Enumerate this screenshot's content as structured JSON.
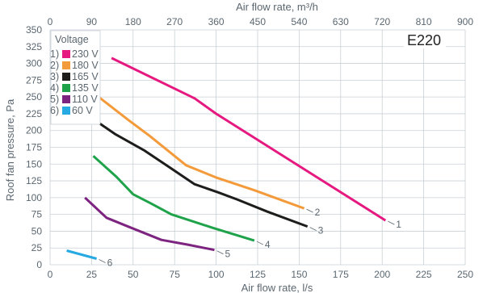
{
  "chart_data": {
    "type": "line",
    "model_label": "E220",
    "xlabel": "Air flow rate, l/s",
    "x2label": "Air flow rate, m³/h",
    "ylabel": "Roof fan pressure, Pa",
    "xlim": [
      0,
      250
    ],
    "x2lim": [
      0,
      900
    ],
    "ylim": [
      0,
      350
    ],
    "x_ticks": [
      "0",
      "25",
      "50",
      "75",
      "100",
      "125",
      "150",
      "175",
      "200",
      "225",
      "250"
    ],
    "x2_ticks": [
      "0",
      "90",
      "180",
      "270",
      "360",
      "450",
      "540",
      "630",
      "720",
      "810",
      "900"
    ],
    "y_ticks": [
      "0",
      "25",
      "50",
      "75",
      "100",
      "125",
      "150",
      "175",
      "200",
      "225",
      "250",
      "275",
      "300",
      "325",
      "350"
    ],
    "grid": true,
    "legend": {
      "title": "Voltage",
      "position": "top-left",
      "entries": [
        {
          "prefix": "1)",
          "label": "230 V"
        },
        {
          "prefix": "2)",
          "label": "180 V"
        },
        {
          "prefix": "3)",
          "label": "165 V"
        },
        {
          "prefix": "4)",
          "label": "135 V"
        },
        {
          "prefix": "5)",
          "label": "110 V"
        },
        {
          "prefix": "6)",
          "label": "60 V"
        }
      ]
    },
    "series": [
      {
        "id": "1",
        "color": "#e5197f",
        "x": [
          37,
          87,
          100,
          202
        ],
        "y": [
          308,
          248,
          225,
          66
        ]
      },
      {
        "id": "2",
        "color": "#f39a3a",
        "x": [
          22,
          47,
          60,
          82,
          100,
          123,
          153
        ],
        "y": [
          264,
          216,
          192,
          148,
          130,
          111,
          84
        ]
      },
      {
        "id": "3",
        "color": "#1d1d1b",
        "x": [
          22,
          39,
          57,
          72,
          87,
          101,
          113,
          131,
          155
        ],
        "y": [
          224,
          195,
          170,
          145,
          120,
          108,
          97,
          79,
          57
        ]
      },
      {
        "id": "4",
        "color": "#1fa34a",
        "x": [
          26,
          40,
          50,
          61,
          73,
          98,
          123
        ],
        "y": [
          162,
          131,
          105,
          91,
          75,
          55,
          36
        ]
      },
      {
        "id": "5",
        "color": "#7d2481",
        "x": [
          21,
          34,
          49,
          67,
          83,
          99
        ],
        "y": [
          100,
          70,
          55,
          37,
          30,
          22
        ]
      },
      {
        "id": "6",
        "color": "#27a9e1",
        "x": [
          10,
          28
        ],
        "y": [
          21,
          9
        ]
      }
    ]
  }
}
